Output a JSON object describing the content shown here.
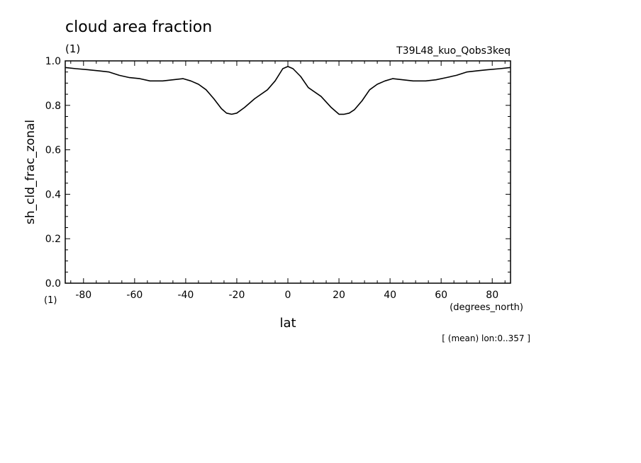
{
  "title": "cloud area fraction",
  "title_units": "(1)",
  "run_label": "T39L48_kuo_Qobs3keq",
  "y_units_label": "(1)",
  "x_units_label": "(degrees_north)",
  "footnote": "[ (mean) lon:0..357 ]",
  "chart_data": {
    "type": "line",
    "xlabel": "lat",
    "ylabel": "sh_cld_frac_zonal",
    "xlim": [
      -87.16,
      87.16
    ],
    "ylim": [
      0.0,
      1.0
    ],
    "x_ticks": [
      -80,
      -60,
      -40,
      -20,
      0,
      20,
      40,
      60,
      80
    ],
    "x_tick_labels": [
      "-80",
      "-60",
      "-40",
      "-20",
      "0",
      "20",
      "40",
      "60",
      "80"
    ],
    "y_ticks": [
      0.0,
      0.2,
      0.4,
      0.6,
      0.8,
      1.0
    ],
    "y_tick_labels": [
      "0.0",
      "0.2",
      "0.4",
      "0.6",
      "0.8",
      "1.0"
    ],
    "grid": false,
    "line_color": "#000000",
    "series": [
      {
        "x": [
          -87,
          -83,
          -78,
          -74,
          -70,
          -66,
          -62,
          -58,
          -54,
          -49,
          -45,
          -41,
          -38,
          -35,
          -32,
          -29,
          -26,
          -24,
          -22,
          -20,
          -17,
          -13,
          -8,
          -5,
          -2,
          0,
          2,
          5,
          8,
          13,
          17,
          20,
          22,
          24,
          26,
          29,
          32,
          35,
          38,
          41,
          45,
          49,
          54,
          58,
          62,
          66,
          70,
          74,
          78,
          83,
          87
        ],
        "y": [
          0.97,
          0.965,
          0.96,
          0.955,
          0.95,
          0.935,
          0.925,
          0.92,
          0.91,
          0.91,
          0.915,
          0.92,
          0.91,
          0.895,
          0.87,
          0.83,
          0.785,
          0.765,
          0.76,
          0.765,
          0.79,
          0.83,
          0.87,
          0.91,
          0.965,
          0.975,
          0.965,
          0.93,
          0.88,
          0.84,
          0.79,
          0.76,
          0.76,
          0.765,
          0.78,
          0.82,
          0.87,
          0.895,
          0.91,
          0.92,
          0.915,
          0.91,
          0.91,
          0.915,
          0.925,
          0.935,
          0.95,
          0.955,
          0.96,
          0.965,
          0.97
        ]
      }
    ]
  }
}
